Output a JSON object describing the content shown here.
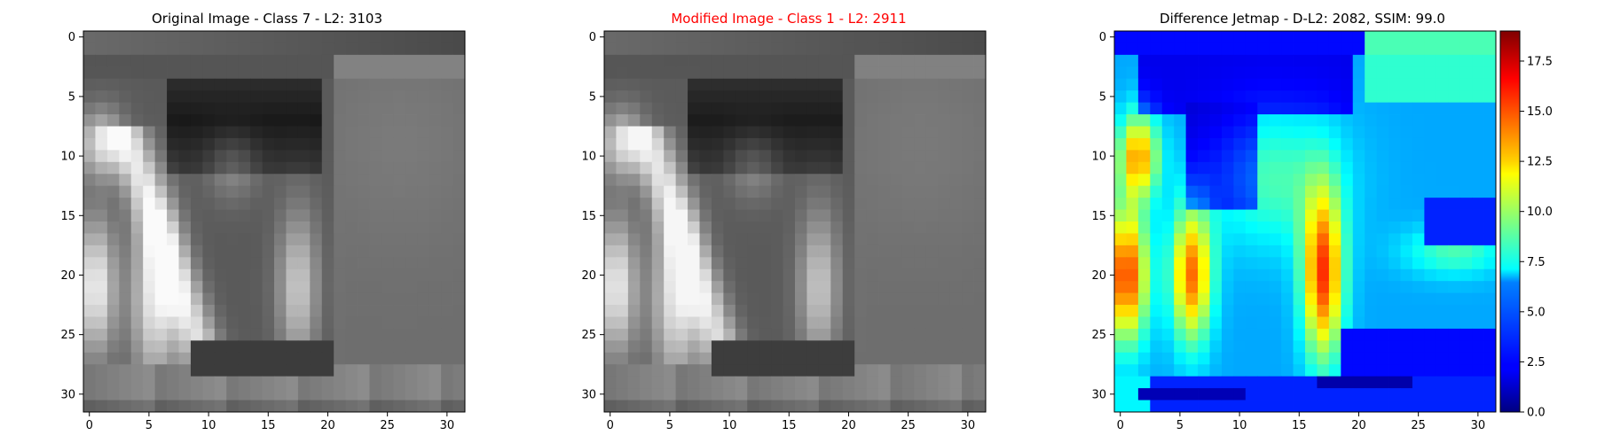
{
  "figure": {
    "panels": [
      {
        "title": "Original Image - Class 7 - L2: 3103",
        "title_color": "#000000"
      },
      {
        "title": "Modified Image - Class 1 - L2: 2911",
        "title_color": "#ff0000"
      },
      {
        "title": "Difference Jetmap - D-L2: 2082, SSIM: 99.0",
        "title_color": "#000000"
      }
    ]
  },
  "chart_data": [
    {
      "type": "heatmap",
      "title": "Original Image - Class 7 - L2: 3103",
      "colormap": "gray",
      "grid_size": [
        32,
        32
      ],
      "xticks": [
        0,
        5,
        10,
        15,
        20,
        25,
        30
      ],
      "yticks": [
        0,
        5,
        10,
        15,
        20,
        25,
        30
      ],
      "xlim": [
        -0.5,
        31.5
      ],
      "ylim": [
        31.5,
        -0.5
      ]
    },
    {
      "type": "heatmap",
      "title": "Modified Image - Class 1 - L2: 2911",
      "colormap": "gray",
      "grid_size": [
        32,
        32
      ],
      "xticks": [
        0,
        5,
        10,
        15,
        20,
        25,
        30
      ],
      "yticks": [
        0,
        5,
        10,
        15,
        20,
        25,
        30
      ],
      "xlim": [
        -0.5,
        31.5
      ],
      "ylim": [
        31.5,
        -0.5
      ]
    },
    {
      "type": "heatmap",
      "title": "Difference Jetmap - D-L2: 2082, SSIM: 99.0",
      "colormap": "jet",
      "grid_size": [
        32,
        32
      ],
      "xticks": [
        0,
        5,
        10,
        15,
        20,
        25,
        30
      ],
      "yticks": [
        0,
        5,
        10,
        15,
        20,
        25,
        30
      ],
      "xlim": [
        -0.5,
        31.5
      ],
      "ylim": [
        31.5,
        -0.5
      ],
      "colorbar": {
        "min": 0.0,
        "max": 19.0,
        "ticks": [
          "0.0",
          "2.5",
          "5.0",
          "7.5",
          "10.0",
          "12.5",
          "15.0",
          "17.5"
        ]
      }
    }
  ]
}
